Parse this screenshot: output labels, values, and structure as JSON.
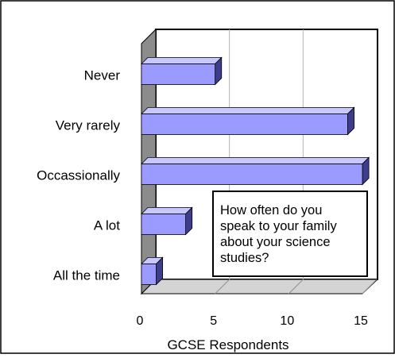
{
  "chart_data": {
    "type": "bar",
    "orientation": "horizontal",
    "style": "3d",
    "categories": [
      "Never",
      "Very rarely",
      "Occassionally",
      "A lot",
      "All the time"
    ],
    "values": [
      5,
      14,
      15,
      3,
      1
    ],
    "xlabel": "GCSE Respondents",
    "xlim": [
      0,
      15
    ],
    "xticks": [
      "0",
      "5",
      "10",
      "15"
    ],
    "grid": "vertical",
    "legend": "none",
    "annotation": [
      "How often do you",
      "speak to your family",
      "about your science",
      "studies?"
    ],
    "colors": {
      "bar_front": "#9b9bff",
      "bar_top": "#c8c8ff",
      "bar_side": "#3d3d8c",
      "wall": "#8c8c8c",
      "floor": "#d4d4d4"
    }
  }
}
